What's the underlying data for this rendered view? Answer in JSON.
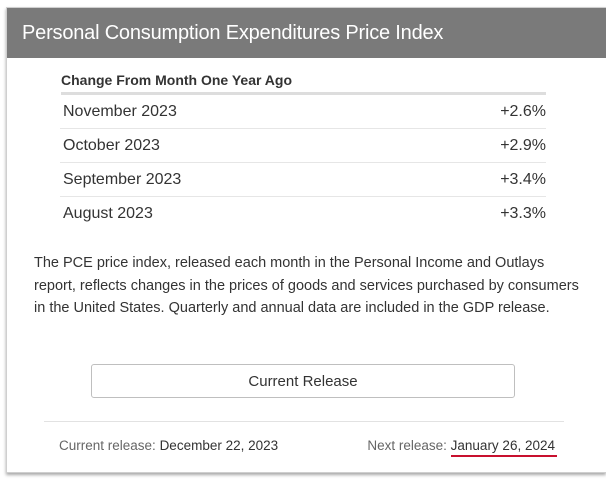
{
  "header": {
    "title": "Personal Consumption Expenditures Price Index"
  },
  "table": {
    "heading": "Change From Month One Year Ago",
    "rows": [
      {
        "month": "November 2023",
        "value": "+2.6%"
      },
      {
        "month": "October 2023",
        "value": "+2.9%"
      },
      {
        "month": "September 2023",
        "value": "+3.4%"
      },
      {
        "month": "August 2023",
        "value": "+3.3%"
      }
    ]
  },
  "description": "The PCE price index, released each month in the Personal Income and Outlays report, reflects changes in the prices of goods and services purchased by consumers in the United States. Quarterly and annual data are included in the GDP release.",
  "button": {
    "label": "Current Release"
  },
  "footer": {
    "current_label": "Current release:",
    "current_date": "December 22, 2023",
    "next_label": "Next release:",
    "next_date": "January 26, 2024"
  },
  "colors": {
    "header_bg": "#7a7a7a",
    "annotation_underline": "#c8102e"
  }
}
